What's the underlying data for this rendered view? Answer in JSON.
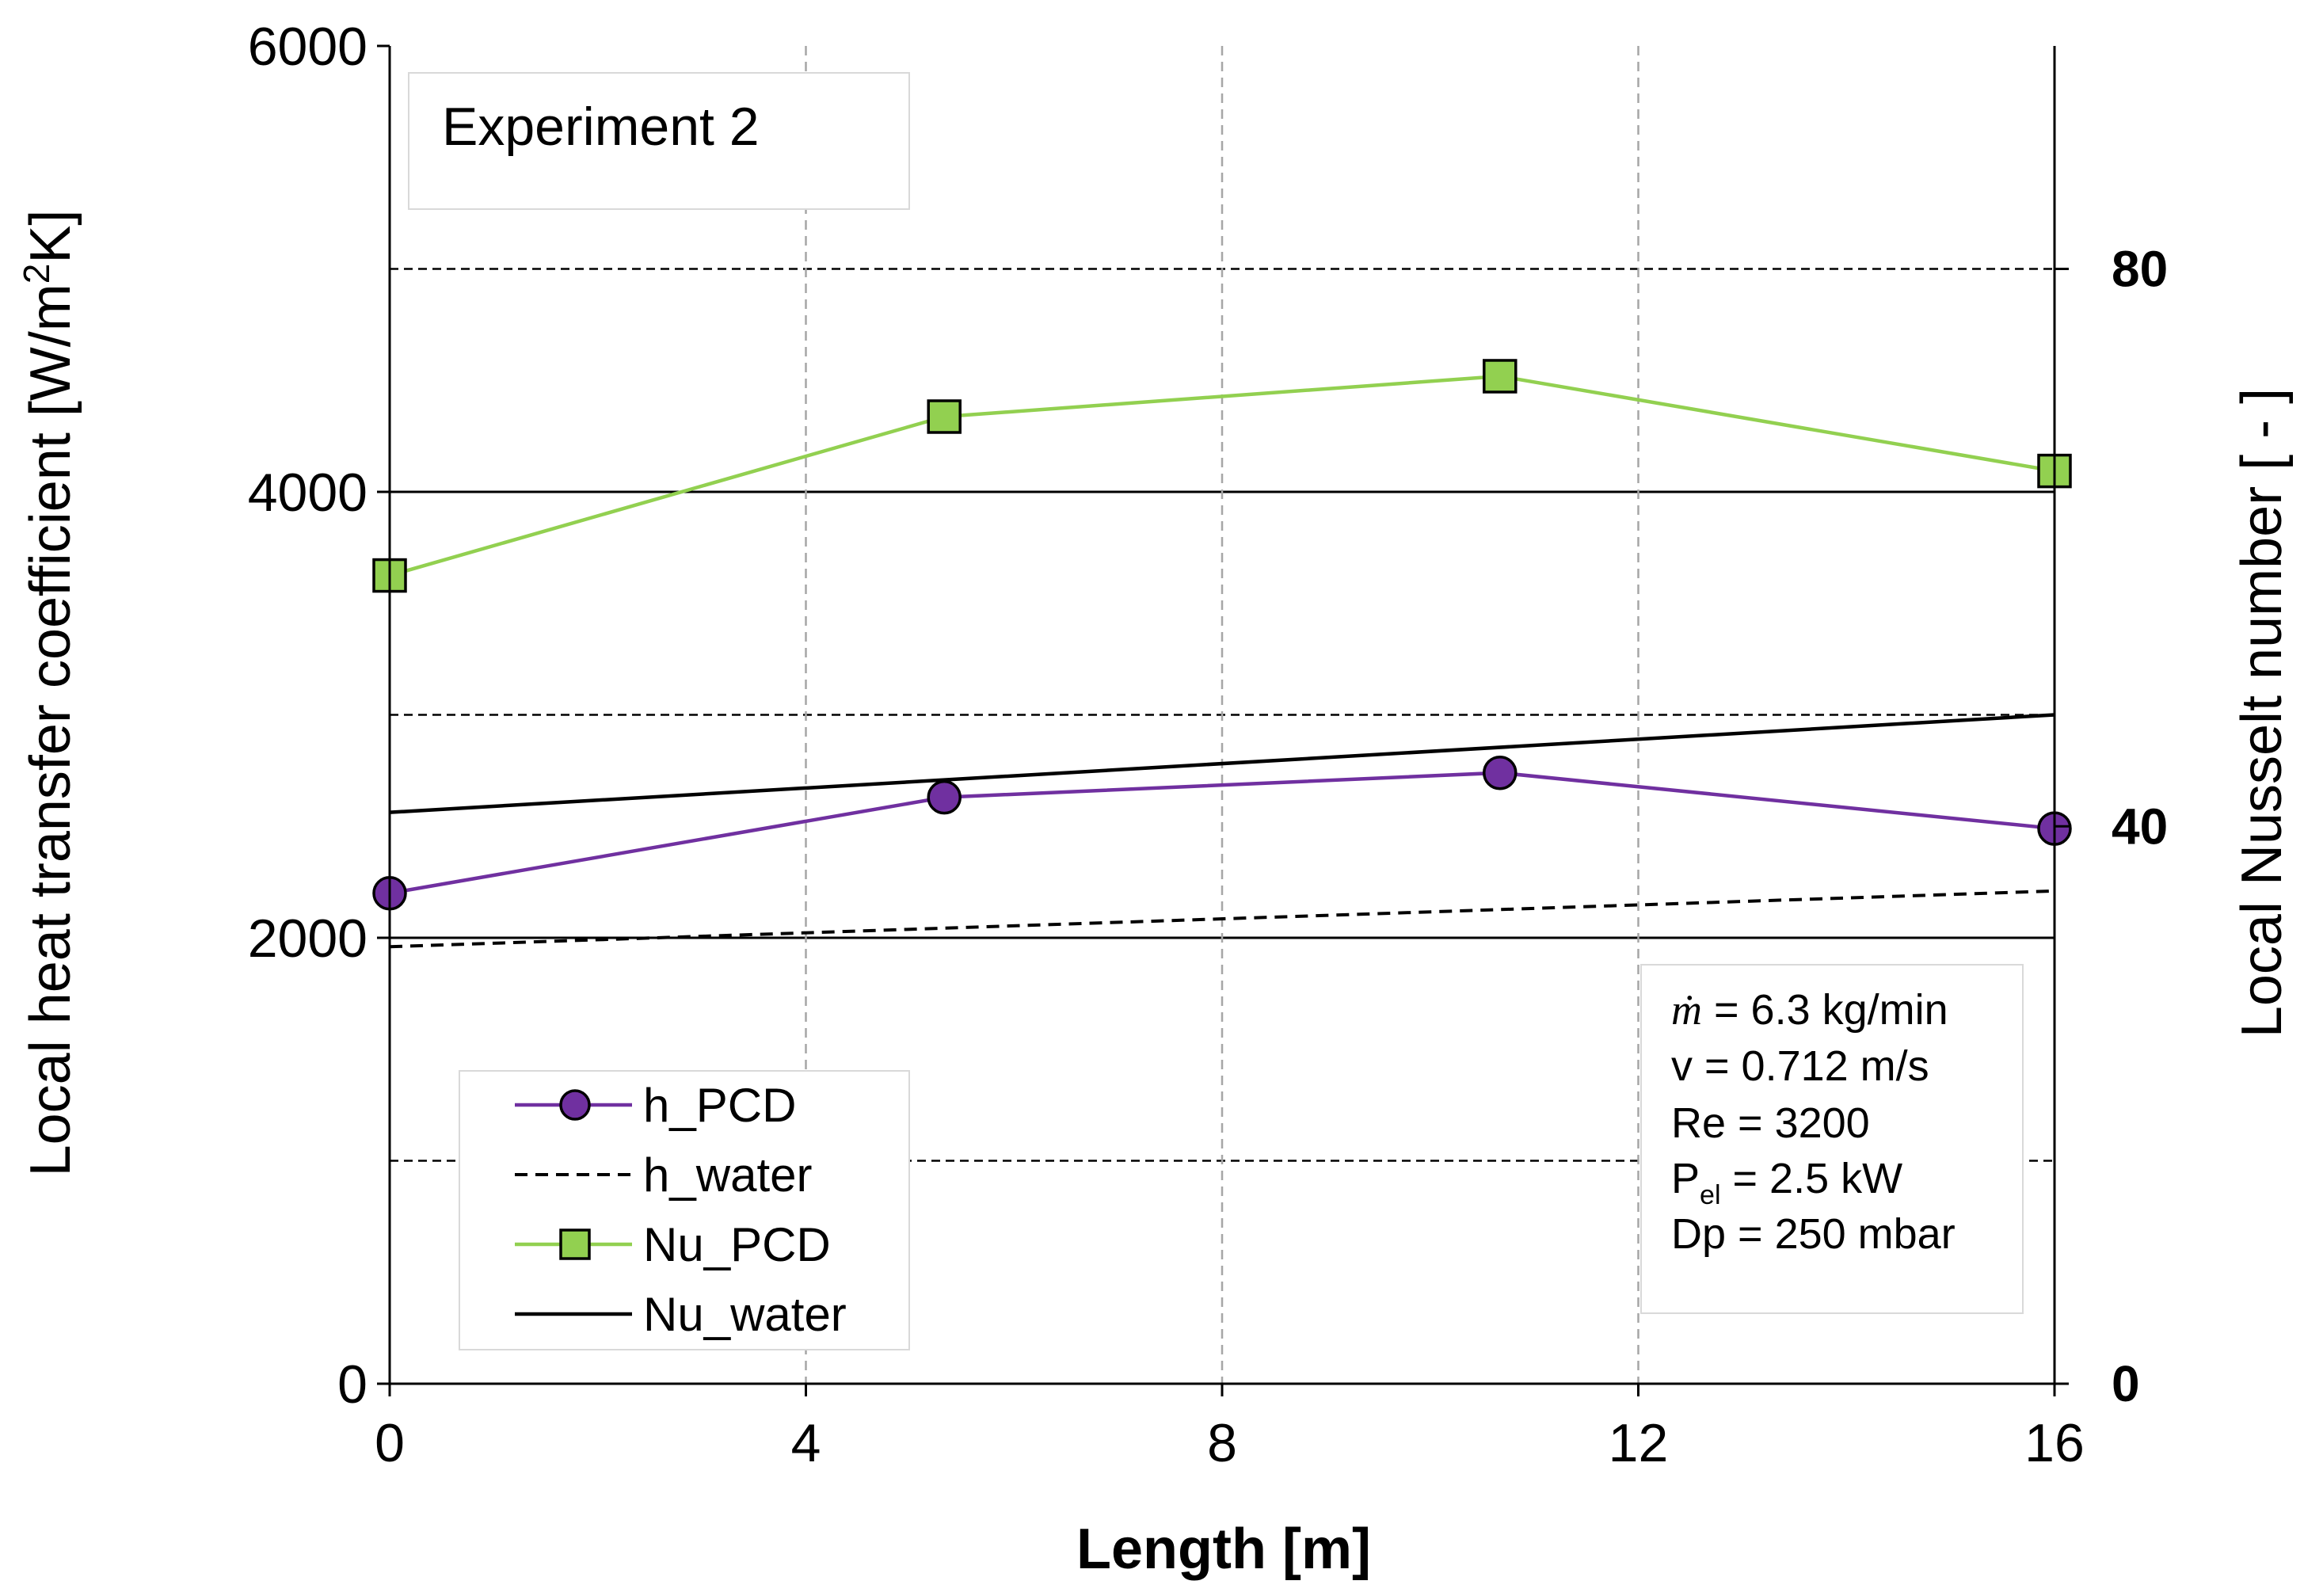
{
  "chart_data": {
    "type": "line",
    "title": "",
    "xlabel": "Length [m]",
    "ylabel_left": "Local heat transfer coefficient [W/m²K]",
    "ylabel_left_parts": [
      "Local heat transfer coefficient [W/m",
      "2",
      "K]"
    ],
    "ylabel_right": "Local Nusselt number [ - ]",
    "xlim": [
      0,
      16
    ],
    "xticks": [
      "0",
      "4",
      "8",
      "12",
      "16"
    ],
    "ylim_left": [
      0,
      6000
    ],
    "yticks_left": [
      "0",
      "2000",
      "4000",
      "6000"
    ],
    "ylim_right": [
      0,
      96
    ],
    "yticks_right": [
      "0",
      "40",
      "80"
    ],
    "grid": "dashed vertical and horizontal gridlines",
    "legend_position": "bottom-left",
    "annotation_top_left": "Experiment 2",
    "info_box": {
      "mass_flow_symbol": "ṁ",
      "mass_flow": " = 6.3 kg/min",
      "velocity": "v = 0.712 m/s",
      "reynolds": "Re = 3200",
      "power_symbol": "P",
      "power_sub": "el",
      "power": "  = 2.5 kW",
      "pressure_drop": "Dp = 250 mbar"
    },
    "series": [
      {
        "name": "h_PCD",
        "axis": "left",
        "color": "#7030A0",
        "marker": "circle",
        "marker_fill": "#7030A0",
        "line_style": "solid",
        "x": [
          0,
          5.33,
          10.67,
          16
        ],
        "y": [
          2200,
          2630,
          2740,
          2490
        ]
      },
      {
        "name": "h_water",
        "axis": "left",
        "color": "#000000",
        "marker": "none",
        "line_style": "dashed",
        "x": [
          0,
          16
        ],
        "y": [
          1960,
          2210
        ]
      },
      {
        "name": "Nu_PCD",
        "axis": "right",
        "color": "#92D050",
        "marker": "square",
        "marker_fill": "#92D050",
        "line_style": "solid",
        "x": [
          0,
          5.33,
          10.67,
          16
        ],
        "y": [
          58,
          69.4,
          72.3,
          65.5
        ]
      },
      {
        "name": "Nu_water",
        "axis": "right",
        "color": "#000000",
        "marker": "none",
        "line_style": "solid",
        "x": [
          0,
          16
        ],
        "y": [
          41,
          48
        ]
      }
    ]
  }
}
